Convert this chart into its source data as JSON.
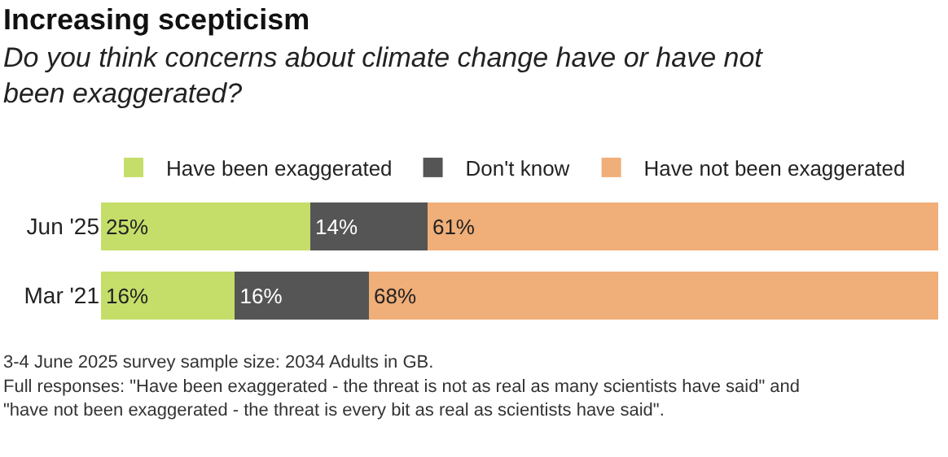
{
  "chart_data": {
    "type": "bar",
    "orientation": "horizontal",
    "stacked": true,
    "title": "Increasing scepticism",
    "subtitle": "Do you think concerns about climate change have or have not been exaggerated?",
    "categories": [
      "Jun '25",
      "Mar '21"
    ],
    "series": [
      {
        "name": "Have been exaggerated",
        "color": "#c5de6a",
        "values": [
          25,
          16
        ],
        "value_labels": [
          "25%",
          "16%"
        ]
      },
      {
        "name": "Don't know",
        "color": "#555555",
        "values": [
          14,
          16
        ],
        "value_labels": [
          "14%",
          "16%"
        ]
      },
      {
        "name": "Have not been exaggerated",
        "color": "#f0ae78",
        "values": [
          61,
          68
        ],
        "value_labels": [
          "61%",
          "68%"
        ]
      }
    ],
    "xlim": [
      0,
      100
    ],
    "tick_labels": "y",
    "legend": "top left",
    "annotations": [
      "3-4 June 2025 survey sample size: 2034 Adults in GB.",
      "Full responses: \"Have been exaggerated - the threat is not as real as many scientists have said\" and \"have not been exaggerated - the threat is every bit as real as scientists have said\"."
    ]
  }
}
